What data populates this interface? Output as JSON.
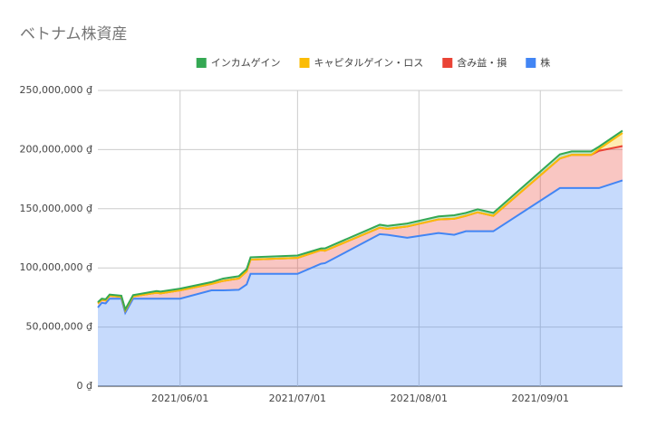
{
  "chart_data": {
    "type": "stacked_area",
    "title": "ベトナム株資産",
    "x": [
      "2021/05/11",
      "2021/05/12",
      "2021/05/13",
      "2021/05/14",
      "2021/05/17",
      "2021/05/18",
      "2021/05/20",
      "2021/05/26",
      "2021/05/27",
      "2021/06/01",
      "2021/06/09",
      "2021/06/12",
      "2021/06/16",
      "2021/06/18",
      "2021/06/19",
      "2021/07/01",
      "2021/07/07",
      "2021/07/08",
      "2021/07/22",
      "2021/07/24",
      "2021/07/29",
      "2021/08/06",
      "2021/08/10",
      "2021/08/13",
      "2021/08/16",
      "2021/08/20",
      "2021/09/06",
      "2021/09/09",
      "2021/09/14",
      "2021/09/16",
      "2021/09/22"
    ],
    "series": [
      {
        "name": "インカムゲイン",
        "color": "#34a853",
        "values": [
          1000000,
          1000000,
          1000000,
          1000000,
          1000000,
          1000000,
          1000000,
          1500000,
          1500000,
          1500000,
          1500000,
          2000000,
          2000000,
          2000000,
          2000000,
          2000000,
          1500000,
          2000000,
          2500000,
          2500000,
          2500000,
          2500000,
          3000000,
          2500000,
          2500000,
          2500000,
          3500000,
          3000000,
          3000000,
          2000000,
          2000000
        ]
      },
      {
        "name": "キャピタルゲイン・ロス",
        "color": "#fbbc04",
        "values": [
          0,
          0,
          0,
          0,
          0,
          0,
          0,
          0,
          0,
          0,
          0,
          0,
          0,
          0,
          0,
          0,
          0,
          0,
          0,
          0,
          0,
          0,
          0,
          0,
          0,
          0,
          0,
          0,
          0,
          1500000,
          11000000
        ]
      },
      {
        "name": "含み益・損",
        "color": "#ea4335",
        "values": [
          3500000,
          2500000,
          2500000,
          2500000,
          1500000,
          2000000,
          2000000,
          5000000,
          4500000,
          7000000,
          5500000,
          8000000,
          9500000,
          11000000,
          12000000,
          13500000,
          11500000,
          10500000,
          5500000,
          5000000,
          9500000,
          11500000,
          13500000,
          13000000,
          16000000,
          13000000,
          25000000,
          28000000,
          28000000,
          31500000,
          29000000
        ]
      },
      {
        "name": "株",
        "color": "#4285f4",
        "values": [
          66500000,
          70500000,
          70000000,
          74000000,
          74000000,
          62000000,
          74000000,
          74000000,
          74000000,
          74000000,
          81000000,
          81000000,
          81500000,
          86000000,
          95000000,
          95000000,
          103500000,
          104000000,
          128500000,
          128000000,
          125500000,
          129500000,
          128000000,
          131000000,
          131000000,
          131000000,
          167500000,
          167500000,
          167500000,
          167500000,
          174000000
        ]
      }
    ],
    "xlim": [
      "2021/05/11",
      "2021/09/22"
    ],
    "xticks": [
      "2021/06/01",
      "2021/07/01",
      "2021/08/01",
      "2021/09/01"
    ],
    "ylim": [
      0,
      250000000
    ],
    "yticks": [
      {
        "value": 0,
        "label": "0 ₫"
      },
      {
        "value": 50000000,
        "label": "50,000,000 ₫"
      },
      {
        "value": 100000000,
        "label": "100,000,000 ₫"
      },
      {
        "value": 150000000,
        "label": "150,000,000 ₫"
      },
      {
        "value": 200000000,
        "label": "200,000,000 ₫"
      },
      {
        "value": 250000000,
        "label": "250,000,000 ₫"
      }
    ],
    "grid": true
  }
}
